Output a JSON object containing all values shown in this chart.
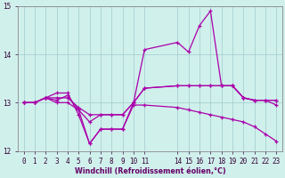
{
  "xlabel": "Windchill (Refroidissement éolien,°C)",
  "xlim": [
    -0.5,
    23.5
  ],
  "ylim": [
    12,
    15
  ],
  "yticks": [
    12,
    13,
    14,
    15
  ],
  "xticks": [
    0,
    1,
    2,
    3,
    4,
    5,
    6,
    7,
    8,
    9,
    10,
    11,
    14,
    15,
    16,
    17,
    18,
    19,
    20,
    21,
    22,
    23
  ],
  "bg_color": "#d0f0ec",
  "grid_color": "#a0cccc",
  "line_color": "#aa00aa",
  "line1_x": [
    0,
    1,
    2,
    3,
    4,
    5,
    6,
    7,
    8,
    9,
    10,
    11,
    14,
    15,
    16,
    17,
    18,
    19,
    20,
    21,
    22,
    23
  ],
  "line1_y": [
    13.0,
    13.0,
    13.1,
    13.1,
    13.1,
    12.9,
    12.75,
    12.75,
    12.75,
    12.75,
    13.0,
    13.3,
    13.35,
    13.35,
    13.35,
    13.35,
    13.35,
    13.35,
    13.1,
    13.05,
    13.05,
    13.05
  ],
  "line2_x": [
    0,
    1,
    2,
    3,
    4,
    5,
    6,
    7,
    8,
    9,
    10,
    11,
    14,
    15,
    16,
    17,
    18,
    19,
    20,
    21,
    22,
    23
  ],
  "line2_y": [
    13.0,
    13.0,
    13.1,
    13.0,
    13.0,
    12.85,
    12.15,
    12.45,
    12.45,
    12.45,
    13.0,
    14.1,
    14.25,
    14.05,
    14.6,
    14.9,
    13.35,
    13.35,
    13.1,
    13.05,
    13.05,
    12.95
  ],
  "line3_x": [
    0,
    1,
    2,
    3,
    4,
    5,
    6,
    7,
    8,
    9,
    10,
    11,
    14,
    15,
    16,
    17,
    18,
    19,
    20,
    21,
    22,
    23
  ],
  "line3_y": [
    13.0,
    13.0,
    13.1,
    13.2,
    13.2,
    12.75,
    12.15,
    12.45,
    12.45,
    12.45,
    12.95,
    12.95,
    12.9,
    12.85,
    12.8,
    12.75,
    12.7,
    12.65,
    12.6,
    12.5,
    12.35,
    12.2
  ],
  "line4_x": [
    0,
    1,
    2,
    3,
    4,
    5,
    6,
    7,
    8,
    9,
    10,
    11,
    14,
    15,
    16,
    17,
    18,
    19,
    20,
    21,
    22,
    23
  ],
  "line4_y": [
    13.0,
    13.0,
    13.1,
    13.05,
    13.15,
    12.85,
    12.6,
    12.75,
    12.75,
    12.75,
    13.0,
    13.3,
    13.35,
    13.35,
    13.35,
    13.35,
    13.35,
    13.35,
    13.1,
    13.05,
    13.05,
    13.05
  ]
}
